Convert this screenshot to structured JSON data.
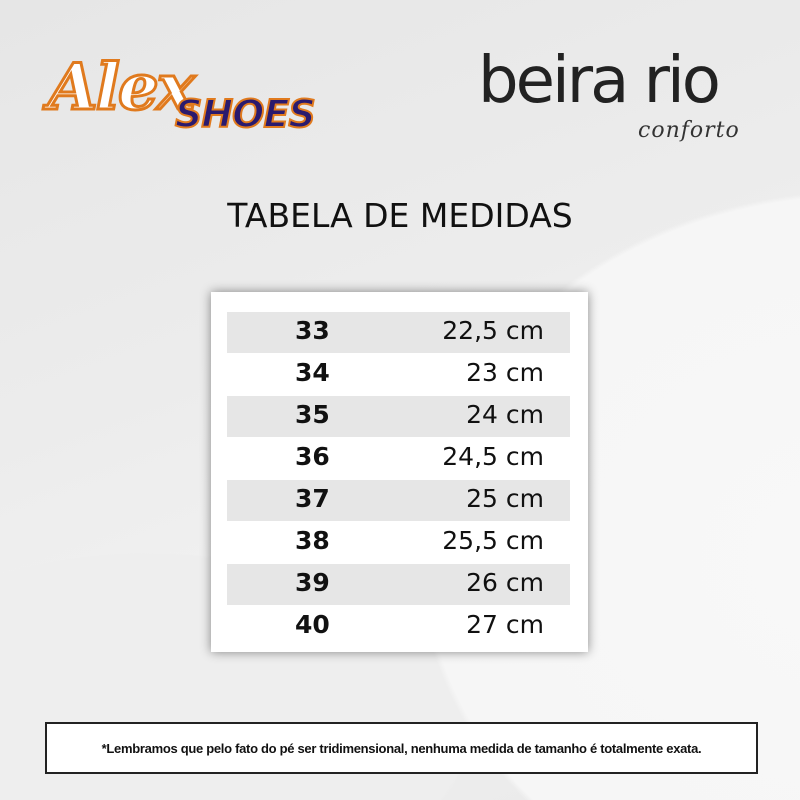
{
  "brands": {
    "left_logo_line1": "Alex",
    "left_logo_line2": "SHOES",
    "right_logo_main": "beira rio",
    "right_logo_sub": "conforto"
  },
  "colors": {
    "alex_orange": "#e07a1e",
    "shoes_navy": "#2a1a6e"
  },
  "title": "TABELA DE MEDIDAS",
  "table": {
    "rows": [
      {
        "size": "33",
        "length": "22,5 cm"
      },
      {
        "size": "34",
        "length": "23 cm"
      },
      {
        "size": "35",
        "length": "24 cm"
      },
      {
        "size": "36",
        "length": "24,5 cm"
      },
      {
        "size": "37",
        "length": "25 cm"
      },
      {
        "size": "38",
        "length": "25,5 cm"
      },
      {
        "size": "39",
        "length": "26 cm"
      },
      {
        "size": "40",
        "length": "27 cm"
      }
    ]
  },
  "footer_note": "*Lembramos que pelo fato do pé ser tridimensional, nenhuma medida de tamanho é totalmente exata."
}
